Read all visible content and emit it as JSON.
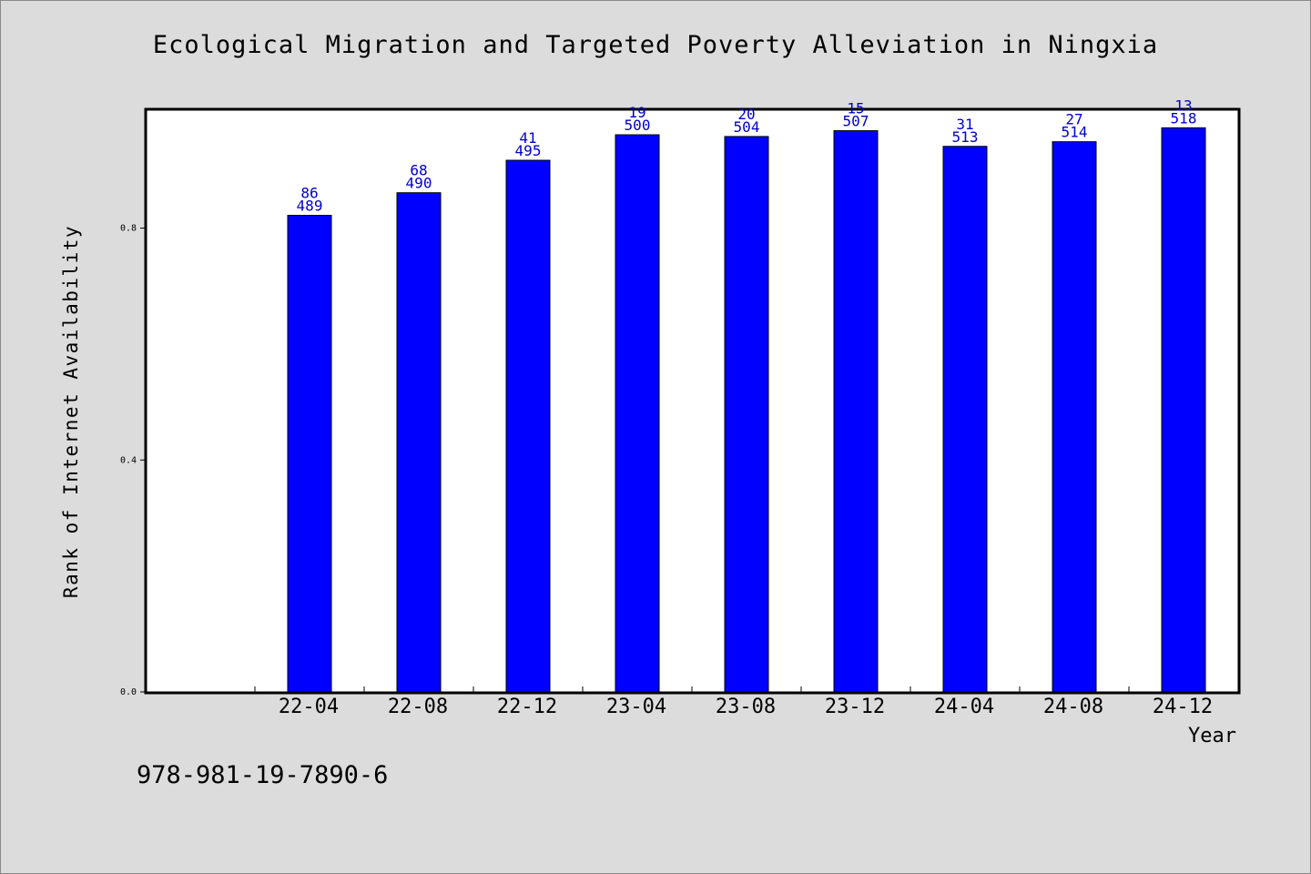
{
  "chart_data": {
    "type": "bar",
    "title": "Ecological Migration and Targeted Poverty Alleviation in Ningxia",
    "xlabel": "Year",
    "ylabel": "Rank of Internet Availability",
    "ylim": [
      0,
      1.005
    ],
    "yticks": [
      "0.0",
      "0.4",
      "0.8"
    ],
    "categories": [
      "22-04",
      "22-08",
      "22-12",
      "23-04",
      "23-08",
      "23-12",
      "24-04",
      "24-08",
      "24-12"
    ],
    "values": [
      0.822,
      0.861,
      0.917,
      0.961,
      0.958,
      0.968,
      0.941,
      0.949,
      0.973
    ],
    "labels_top": [
      "86",
      "68",
      "41",
      "19",
      "20",
      "15",
      "31",
      "27",
      "13"
    ],
    "labels_bottom": [
      "489",
      "490",
      "495",
      "500",
      "504",
      "507",
      "513",
      "514",
      "518"
    ],
    "bar_color": "#0000ff",
    "label_color": "#0000cc",
    "grid": false
  },
  "footer": {
    "isbn": "978-981-19-7890-6"
  }
}
